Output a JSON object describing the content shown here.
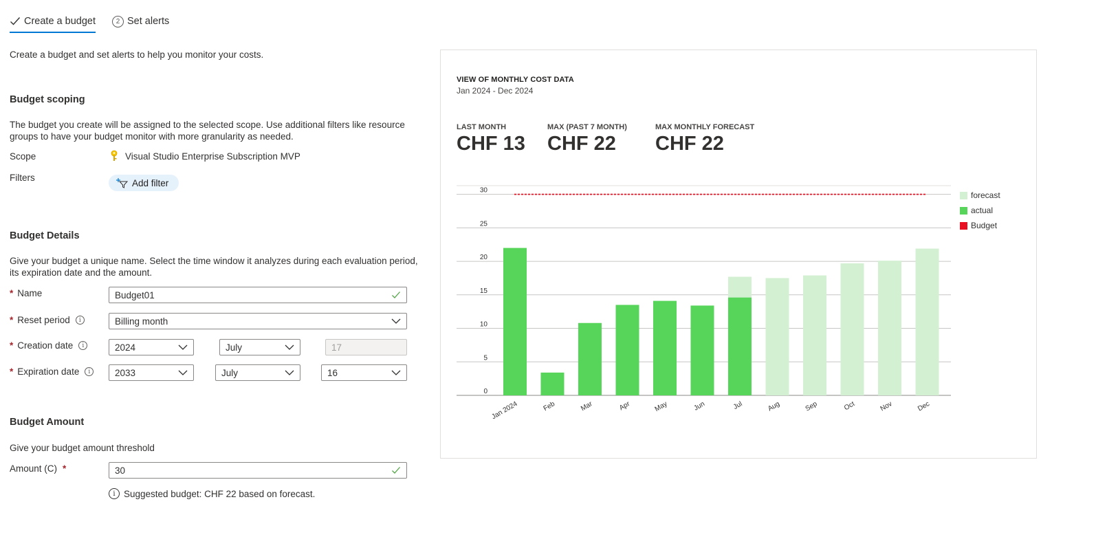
{
  "tabs": [
    {
      "label": "Create a budget",
      "active": true
    },
    {
      "label": "Set alerts",
      "step": "2",
      "active": false
    }
  ],
  "intro": "Create a budget and set alerts to help you monitor your costs.",
  "scoping": {
    "title": "Budget scoping",
    "description": "The budget you create will be assigned to the selected scope. Use additional filters like resource groups to have your budget monitor with more granularity as needed.",
    "scope_label": "Scope",
    "scope_value": "Visual Studio Enterprise Subscription MVP",
    "filters_label": "Filters",
    "add_filter_label": "Add filter"
  },
  "details": {
    "title": "Budget Details",
    "description": "Give your budget a unique name. Select the time window it analyzes during each evaluation period, its expiration date and the amount.",
    "name_label": "Name",
    "name_value": "Budget01",
    "reset_label": "Reset period",
    "reset_value": "Billing month",
    "creation_label": "Creation date",
    "creation_year": "2024",
    "creation_month": "July",
    "creation_day": "17",
    "expiration_label": "Expiration date",
    "expiration_year": "2033",
    "expiration_month": "July",
    "expiration_day": "16"
  },
  "amount": {
    "title": "Budget Amount",
    "description": "Give your budget amount threshold",
    "amount_label": "Amount (C)",
    "amount_value": "30",
    "suggestion": "Suggested budget: CHF 22 based on forecast."
  },
  "card": {
    "title": "VIEW OF MONTHLY COST DATA",
    "subtitle": "Jan 2024 - Dec 2024",
    "kpis": [
      {
        "label": "LAST MONTH",
        "value": "CHF 13"
      },
      {
        "label": "MAX (PAST 7 MONTH)",
        "value": "CHF 22"
      },
      {
        "label": "MAX MONTHLY FORECAST",
        "value": "CHF 22"
      }
    ]
  },
  "colors": {
    "accent": "#0078d4",
    "actual": "#57d45a",
    "forecast": "#d3f0d3",
    "budget": "#e81123"
  },
  "chart_data": {
    "type": "bar",
    "categories": [
      "Jan 2024",
      "Feb",
      "Mar",
      "Apr",
      "May",
      "Jun",
      "Jul",
      "Aug",
      "Sep",
      "Oct",
      "Nov",
      "Dec"
    ],
    "series": [
      {
        "name": "actual",
        "values": [
          22,
          3.4,
          10.8,
          13.5,
          14.1,
          13.4,
          14.6,
          null,
          null,
          null,
          null,
          null
        ]
      },
      {
        "name": "forecast",
        "values": [
          null,
          null,
          null,
          null,
          null,
          null,
          17.7,
          17.5,
          17.9,
          19.7,
          20.1,
          21.9
        ]
      }
    ],
    "budget": {
      "name": "Budget",
      "value": 30
    },
    "yticks": [
      0,
      5,
      10,
      15,
      20,
      25,
      30
    ],
    "ylim": [
      0,
      31.5
    ],
    "legend": [
      "forecast",
      "actual",
      "Budget"
    ],
    "legend_position": "right",
    "grid": true
  }
}
